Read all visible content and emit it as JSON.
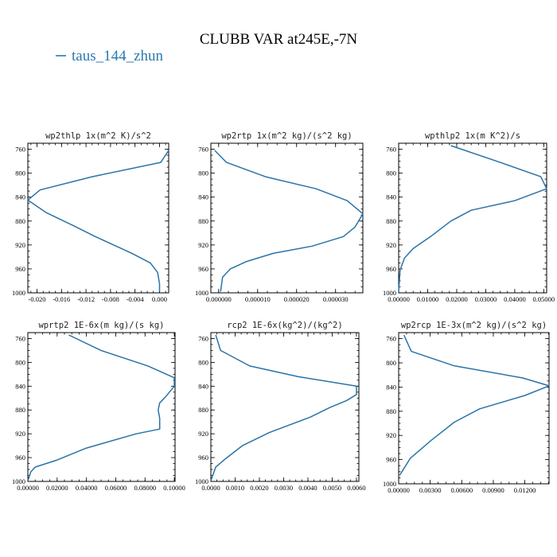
{
  "figure": {
    "title": "CLUBB VAR at245E,-7N",
    "legend_label": "taus_144_zhun",
    "line_color": "#2a73a8",
    "legend_color": "#2a7ab0"
  },
  "chart_data": [
    {
      "type": "line",
      "title": "wp2thlp  1x(m^2 K)/s^2",
      "xlim": [
        -0.0215,
        0.0015
      ],
      "ylim": [
        1000,
        750
      ],
      "y_reversed": true,
      "xticks": [
        -0.02,
        -0.016,
        -0.012,
        -0.008,
        -0.004,
        0.0
      ],
      "xtick_labels": [
        "-0.020",
        "-0.016",
        "-0.012",
        "-0.008",
        "-0.004",
        "0.000"
      ],
      "yticks": [
        760,
        800,
        840,
        880,
        920,
        960,
        1000
      ],
      "series": [
        {
          "x": [
            0.0015,
            0.0002,
            -0.011,
            -0.0195,
            -0.0215,
            -0.0185,
            -0.014,
            -0.0105,
            -0.0075,
            -0.0045,
            -0.0015,
            -0.0003,
            0.0,
            0.0
          ],
          "y": [
            762,
            782,
            806,
            828,
            845,
            866,
            888,
            906,
            920,
            934,
            950,
            966,
            985,
            998
          ]
        }
      ]
    },
    {
      "type": "line",
      "title": "wp2rtp  1x(m^2 kg)/(s^2 kg)",
      "xlim": [
        -2e-06,
        3.7e-05
      ],
      "ylim": [
        1000,
        750
      ],
      "y_reversed": true,
      "xticks": [
        0.0,
        1e-05,
        2e-05,
        3e-05
      ],
      "xtick_labels": [
        "0.000000",
        "0.000010",
        "0.000020",
        "0.000030"
      ],
      "yticks": [
        760,
        800,
        840,
        880,
        920,
        960,
        1000
      ],
      "series": [
        {
          "x": [
            -1e-06,
            2e-06,
            1.2e-05,
            2.5e-05,
            3.3e-05,
            3.7e-05,
            3.5e-05,
            3.2e-05,
            2.4e-05,
            1.4e-05,
            7e-06,
            3e-06,
            1e-06,
            5e-07
          ],
          "y": [
            762,
            782,
            806,
            826,
            846,
            868,
            890,
            906,
            922,
            934,
            948,
            960,
            974,
            998
          ]
        }
      ]
    },
    {
      "type": "line",
      "title": "wpthlp2  1x(m K^2)/s",
      "xlim": [
        0.0,
        0.051
      ],
      "ylim": [
        1000,
        750
      ],
      "y_reversed": true,
      "xticks": [
        0.0,
        0.01,
        0.02,
        0.03,
        0.04,
        0.05
      ],
      "xtick_labels": [
        "0.00000",
        "0.01000",
        "0.02000",
        "0.03000",
        "0.04000",
        "0.05000"
      ],
      "yticks": [
        760,
        800,
        840,
        880,
        920,
        960,
        1000
      ],
      "series": [
        {
          "x": [
            0.018,
            0.035,
            0.049,
            0.051,
            0.04,
            0.025,
            0.018,
            0.011,
            0.005,
            0.002,
            0.0005,
            0.0
          ],
          "y": [
            754,
            782,
            806,
            826,
            846,
            862,
            880,
            906,
            926,
            942,
            962,
            999
          ]
        }
      ]
    },
    {
      "type": "line",
      "title": "wprtp2  1E-6x(m kg)/(s kg)",
      "xlim": [
        0.0,
        0.1005
      ],
      "ylim": [
        1000,
        750
      ],
      "y_reversed": true,
      "xticks": [
        0.0,
        0.02,
        0.04,
        0.06,
        0.08,
        0.1
      ],
      "xtick_labels": [
        "0.00000",
        "0.02000",
        "0.04000",
        "0.06000",
        "0.08000",
        "0.10000"
      ],
      "yticks": [
        760,
        800,
        840,
        880,
        920,
        960,
        1000
      ],
      "series": [
        {
          "x": [
            0.028,
            0.05,
            0.082,
            0.1,
            0.1,
            0.094,
            0.09,
            0.089,
            0.09,
            0.09,
            0.074,
            0.04,
            0.02,
            0.005,
            0.002,
            0.0
          ],
          "y": [
            754,
            780,
            806,
            826,
            840,
            858,
            868,
            880,
            894,
            912,
            920,
            944,
            964,
            976,
            984,
            999
          ]
        }
      ]
    },
    {
      "type": "line",
      "title": "rcp2  1E-6x(kg^2)/(kg^2)",
      "xlim": [
        0.0,
        0.0061
      ],
      "ylim": [
        1000,
        750
      ],
      "y_reversed": true,
      "xticks": [
        0.0,
        0.001,
        0.002,
        0.003,
        0.004,
        0.005,
        0.006
      ],
      "xtick_labels": [
        "0.0000",
        "0.0010",
        "0.0020",
        "0.0030",
        "0.0040",
        "0.0050",
        "0.0060"
      ],
      "yticks": [
        760,
        800,
        840,
        880,
        920,
        960,
        1000
      ],
      "series": [
        {
          "x": [
            0.0002,
            0.0004,
            0.0016,
            0.0036,
            0.006,
            0.006,
            0.0056,
            0.0049,
            0.0041,
            0.0024,
            0.0013,
            0.0006,
            0.0002,
            0.0
          ],
          "y": [
            754,
            780,
            806,
            824,
            840,
            854,
            864,
            876,
            892,
            918,
            940,
            962,
            976,
            999
          ]
        }
      ]
    },
    {
      "type": "line",
      "title": "wp2rcp  1E-3x(m^2 kg)/(s^2 kg)",
      "xlim": [
        0.0,
        0.0143
      ],
      "ylim": [
        1000,
        750
      ],
      "y_reversed": true,
      "xticks": [
        0.0,
        0.003,
        0.006,
        0.009,
        0.012
      ],
      "xtick_labels": [
        "0.00000",
        "0.00300",
        "0.00600",
        "0.00900",
        "0.01200"
      ],
      "yticks": [
        760,
        800,
        840,
        880,
        920,
        960,
        1000
      ],
      "series": [
        {
          "x": [
            0.0005,
            0.0012,
            0.0053,
            0.0118,
            0.0143,
            0.012,
            0.0077,
            0.0053,
            0.0031,
            0.0011,
            0.0001
          ],
          "y": [
            754,
            781,
            805,
            825,
            838,
            854,
            876,
            898,
            928,
            958,
            986
          ]
        }
      ]
    }
  ]
}
